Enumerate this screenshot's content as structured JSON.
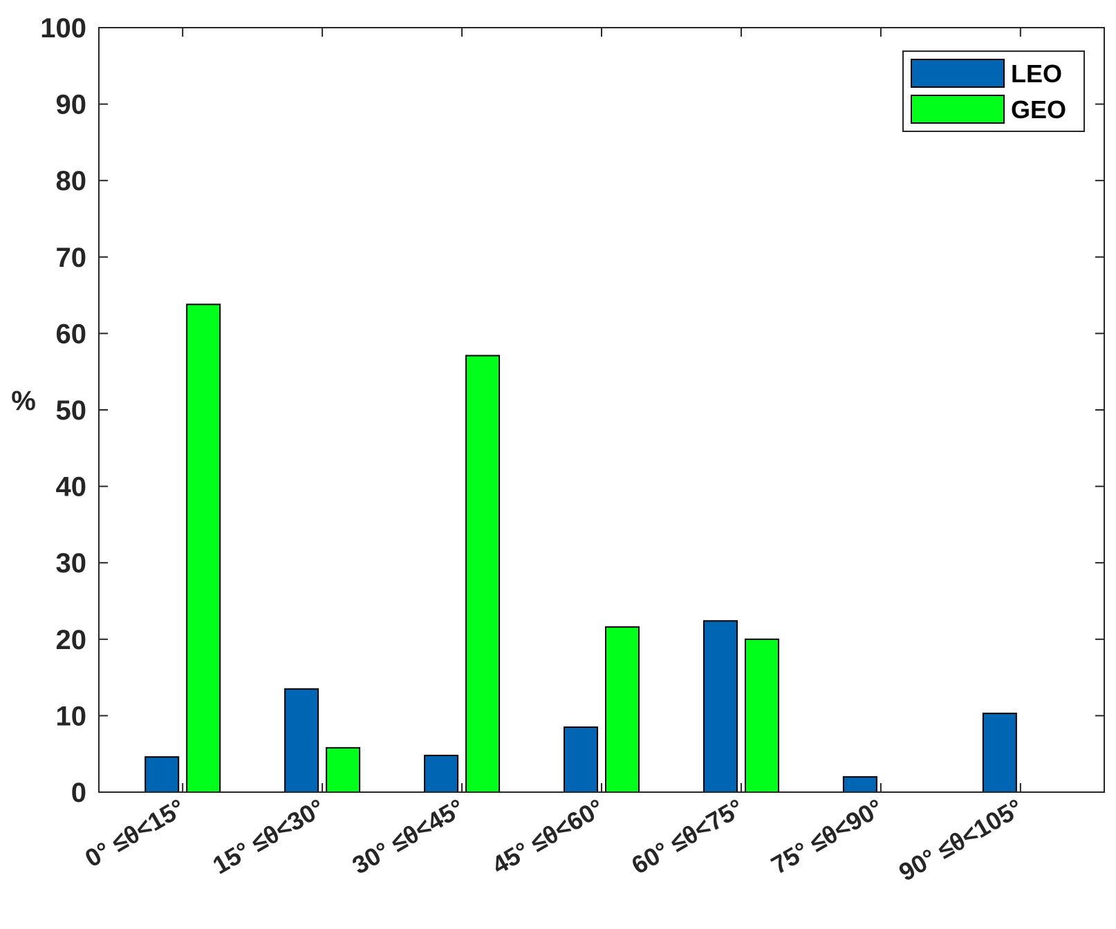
{
  "chart_data": {
    "type": "bar",
    "categories": [
      "0° ≤θ<15°",
      "15° ≤θ<30°",
      "30° ≤θ<45°",
      "45° ≤θ<60°",
      "60° ≤θ<75°",
      "75° ≤θ<90°",
      "90° ≤θ<105°"
    ],
    "series": [
      {
        "name": "LEO",
        "color": "#0066b3",
        "values": [
          4.6,
          13.5,
          4.8,
          8.5,
          22.4,
          2.0,
          10.3
        ]
      },
      {
        "name": "GEO",
        "color": "#00ff1a",
        "values": [
          63.8,
          5.8,
          57.1,
          21.6,
          20.0,
          0,
          0
        ]
      }
    ],
    "title": "",
    "xlabel": "",
    "ylabel": "%",
    "ylim": [
      0,
      100
    ],
    "yticks": [
      0,
      10,
      20,
      30,
      40,
      50,
      60,
      70,
      80,
      90,
      100
    ],
    "grid": false,
    "legend": {
      "placement": "top-right",
      "entries": [
        "LEO",
        "GEO"
      ]
    }
  }
}
